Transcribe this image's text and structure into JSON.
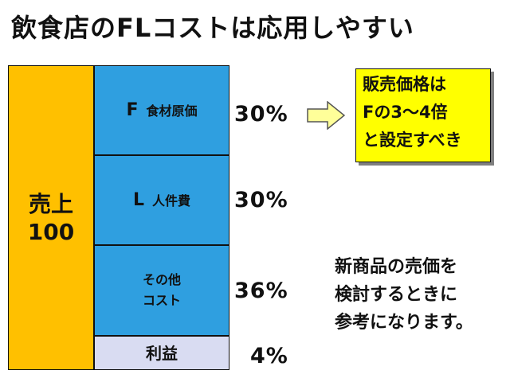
{
  "title": "飲食店のFLコストは応用しやすい",
  "sales": {
    "label": "売上",
    "value": "100"
  },
  "costs": {
    "food": {
      "letter": "F",
      "label": "食材原価",
      "percent": "30%"
    },
    "labor": {
      "letter": "L",
      "label": "人件費",
      "percent": "30%"
    },
    "other": {
      "line1": "その他",
      "line2": "コスト",
      "percent": "36%"
    },
    "profit": {
      "label": "利益",
      "percent": "4%"
    }
  },
  "price_note": {
    "lines": [
      "販売価格は",
      "Fの3～4倍",
      "と設定すべき"
    ]
  },
  "memo": {
    "lines": [
      "新商品の売価を",
      "検討するときに",
      "参考になります。"
    ]
  },
  "colors": {
    "sales": "#ffc000",
    "costs": "#2f9fe0",
    "profit": "#d9dcf2",
    "note_bg": "#ffff00",
    "arrow_fill": "#ffff99"
  }
}
